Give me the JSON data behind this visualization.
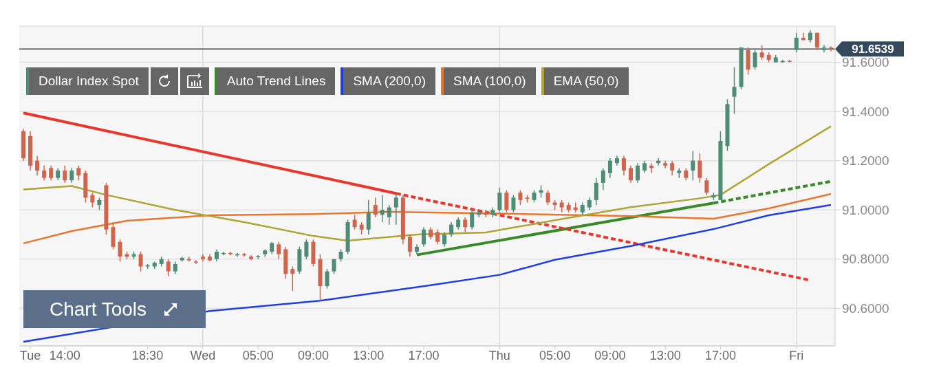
{
  "chart_data": {
    "type": "candlestick",
    "title": "Dollar Index Spot",
    "categories": [
      null,
      "Tue",
      null,
      null,
      null,
      null,
      "14:00",
      null,
      null,
      null,
      null,
      null,
      null,
      null,
      null,
      null,
      null,
      null,
      "18:30",
      null,
      null,
      null,
      null,
      null,
      null,
      null,
      "Wed",
      null,
      null,
      null,
      null,
      null,
      null,
      null,
      "05:00",
      null,
      null,
      null,
      null,
      null,
      null,
      null,
      "09:00",
      null,
      null,
      null,
      null,
      null,
      null,
      null,
      "13:00",
      null,
      null,
      null,
      null,
      null,
      null,
      null,
      "17:00",
      null,
      null,
      null,
      null,
      null,
      null,
      null,
      null,
      null,
      null,
      "Thu",
      null,
      null,
      null,
      null,
      null,
      null,
      null,
      "05:00",
      null,
      null,
      null,
      null,
      null,
      null,
      null,
      "09:00",
      null,
      null,
      null,
      null,
      null,
      null,
      null,
      "13:00",
      null,
      null,
      null,
      null,
      null,
      null,
      null,
      "17:00",
      null,
      null,
      null,
      null,
      null,
      null,
      null,
      null,
      null,
      null,
      "Fri",
      null,
      null,
      null,
      null,
      null
    ],
    "colors": [
      "#d0654e",
      "#d0654e",
      "#d0654e",
      "#d0654e",
      "#d0654e",
      "#4e8c76",
      "#d0654e",
      "#4e8c76",
      "#d0654e",
      "#d0654e",
      "#d0654e",
      "#4e8c76",
      "#d0654e",
      "#d0654e",
      "#d0654e",
      "#d0654e",
      "#4e8c76",
      "#d0654e",
      "#4e8c76",
      "#4e8c76",
      "#4e8c76",
      "#d0654e",
      "#4e8c76",
      "#4e8c76",
      "#d0654e",
      "#d0654e",
      "#d0654e",
      "#d0654e",
      "#4e8c76",
      "#4e8c76",
      "#d0654e",
      "#4e8c76",
      "#d0654e",
      "#d0654e",
      "#4e8c76",
      "#4e8c76",
      "#4e8c76",
      "#d0654e",
      "#d0654e",
      "#d0654e",
      "#4e8c76",
      "#4e8c76",
      "#d0654e",
      "#d0654e",
      "#4e8c76",
      "#4e8c76",
      "#4e8c76",
      "#4e8c76",
      "#d0654e",
      "#d0654e",
      "#4e8c76",
      "#d0654e",
      "#4e8c76",
      "#4e8c76",
      "#4e8c76",
      "#d0654e",
      "#d0654e",
      "#4e8c76",
      "#4e8c76",
      "#d0654e",
      "#d0654e",
      "#4e8c76",
      "#4e8c76",
      "#4e8c76",
      "#d0654e",
      "#4e8c76",
      "#4e8c76",
      "#d0654e",
      "#4e8c76",
      "#4e8c76",
      "#d0654e",
      "#4e8c76",
      "#d0654e",
      "#d0654e",
      "#4e8c76",
      "#4e8c76",
      "#d0654e",
      "#d0654e",
      "#d0654e",
      "#d0654e",
      "#d0654e",
      "#4e8c76",
      "#4e8c76",
      "#4e8c76",
      "#4e8c76",
      "#4e8c76",
      "#4e8c76",
      "#d0654e",
      "#d0654e",
      "#4e8c76",
      "#4e8c76",
      "#d0654e",
      "#4e8c76",
      "#d0654e",
      "#d0654e",
      "#4e8c76",
      "#d0654e",
      "#4e8c76",
      "#d0654e",
      "#d0654e",
      "#4e8c76",
      "#4e8c76",
      "#4e8c76",
      "#4e8c76",
      "#4e8c76",
      "#d0654e",
      "#4e8c76",
      "#d0654e",
      "#d0654e",
      "#4e8c76",
      "#4e8c76",
      "#d0654e",
      "#4e8c76",
      "#d0654e",
      "#4e8c76",
      "#d0654e",
      "#4e8c76",
      "#d0654e"
    ],
    "ohlc": [
      [
        91.32,
        91.33,
        91.2,
        91.21
      ],
      [
        91.3,
        91.32,
        91.16,
        91.18
      ],
      [
        91.2,
        91.22,
        91.14,
        91.16
      ],
      [
        91.16,
        91.18,
        91.12,
        91.13
      ],
      [
        91.17,
        91.18,
        91.12,
        91.13
      ],
      [
        91.13,
        91.17,
        91.12,
        91.16
      ],
      [
        91.16,
        91.18,
        91.11,
        91.12
      ],
      [
        91.12,
        91.17,
        91.11,
        91.16
      ],
      [
        91.17,
        91.18,
        91.12,
        91.14
      ],
      [
        91.15,
        91.16,
        91.03,
        91.05
      ],
      [
        91.06,
        91.07,
        91.01,
        91.03
      ],
      [
        91.02,
        91.05,
        91.0,
        91.04
      ],
      [
        91.1,
        91.11,
        90.9,
        90.92
      ],
      [
        90.93,
        90.95,
        90.84,
        90.85
      ],
      [
        90.87,
        90.88,
        90.79,
        90.81
      ],
      [
        90.82,
        90.83,
        90.8,
        90.81
      ],
      [
        90.81,
        90.83,
        90.8,
        90.82
      ],
      [
        90.82,
        90.83,
        90.75,
        90.77
      ],
      [
        90.77,
        90.78,
        90.76,
        90.775
      ],
      [
        90.77,
        90.79,
        90.76,
        90.785
      ],
      [
        90.78,
        90.81,
        90.77,
        90.8
      ],
      [
        90.79,
        90.8,
        90.73,
        90.75
      ],
      [
        90.75,
        90.79,
        90.74,
        90.78
      ],
      [
        90.795,
        90.81,
        90.79,
        90.805
      ],
      [
        90.8,
        90.81,
        90.79,
        90.795
      ],
      [
        90.79,
        90.795,
        90.78,
        90.788
      ],
      [
        90.81,
        90.82,
        90.79,
        90.8
      ],
      [
        90.81,
        90.82,
        90.79,
        90.795
      ],
      [
        90.8,
        90.84,
        90.79,
        90.83
      ],
      [
        90.82,
        90.83,
        90.815,
        90.825
      ],
      [
        90.825,
        90.83,
        90.815,
        90.82
      ],
      [
        90.815,
        90.825,
        90.81,
        90.82
      ],
      [
        90.82,
        90.825,
        90.81,
        90.815
      ],
      [
        90.81,
        90.815,
        90.795,
        90.8
      ],
      [
        90.81,
        90.815,
        90.8,
        90.812
      ],
      [
        90.82,
        90.84,
        90.81,
        90.835
      ],
      [
        90.83,
        90.87,
        90.82,
        90.865
      ],
      [
        90.86,
        90.87,
        90.8,
        90.82
      ],
      [
        90.84,
        90.85,
        90.72,
        90.74
      ],
      [
        90.76,
        90.77,
        90.67,
        90.74
      ],
      [
        90.75,
        90.85,
        90.74,
        90.84
      ],
      [
        90.81,
        90.88,
        90.8,
        90.87
      ],
      [
        90.87,
        90.88,
        90.77,
        90.78
      ],
      [
        90.8,
        90.82,
        90.63,
        90.69
      ],
      [
        90.69,
        90.76,
        90.68,
        90.75
      ],
      [
        90.75,
        90.8,
        90.74,
        90.8
      ],
      [
        90.8,
        90.84,
        90.79,
        90.83
      ],
      [
        90.83,
        90.96,
        90.82,
        90.95
      ],
      [
        90.96,
        90.98,
        90.92,
        90.93
      ],
      [
        90.94,
        90.95,
        90.9,
        90.92
      ],
      [
        90.92,
        91.04,
        90.9,
        90.99
      ],
      [
        91.02,
        91.05,
        90.97,
        90.98
      ],
      [
        90.98,
        91.06,
        90.95,
        91.0
      ],
      [
        90.97,
        91.02,
        90.94,
        91.01
      ],
      [
        91.01,
        91.07,
        90.94,
        91.05
      ],
      [
        91.05,
        91.06,
        90.86,
        90.88
      ],
      [
        90.89,
        90.9,
        90.81,
        90.83
      ],
      [
        90.83,
        90.86,
        90.82,
        90.85
      ],
      [
        90.86,
        90.93,
        90.85,
        90.92
      ],
      [
        90.92,
        90.93,
        90.88,
        90.89
      ],
      [
        90.91,
        90.92,
        90.86,
        90.87
      ],
      [
        90.86,
        90.91,
        90.85,
        90.9
      ],
      [
        90.9,
        90.95,
        90.89,
        90.94
      ],
      [
        90.93,
        90.97,
        90.92,
        90.96
      ],
      [
        90.96,
        90.97,
        90.91,
        90.93
      ],
      [
        90.93,
        91.0,
        90.92,
        90.99
      ],
      [
        90.98,
        91.0,
        90.97,
        90.99
      ],
      [
        90.99,
        91.0,
        90.97,
        90.98
      ],
      [
        90.98,
        91.01,
        90.97,
        91.0
      ],
      [
        91.0,
        91.09,
        90.99,
        91.07
      ],
      [
        91.07,
        91.08,
        90.99,
        91.0
      ],
      [
        91.0,
        91.06,
        90.99,
        91.05
      ],
      [
        91.07,
        91.08,
        91.02,
        91.04
      ],
      [
        91.05,
        91.06,
        91.03,
        91.045
      ],
      [
        91.04,
        91.08,
        91.03,
        91.07
      ],
      [
        91.07,
        91.1,
        91.05,
        91.08
      ],
      [
        91.07,
        91.08,
        91.02,
        91.03
      ],
      [
        91.03,
        91.04,
        91.0,
        91.02
      ],
      [
        91.03,
        91.04,
        90.99,
        91.01
      ],
      [
        91.02,
        91.03,
        90.99,
        91.0
      ],
      [
        91.01,
        91.03,
        90.99,
        91.0
      ],
      [
        90.99,
        91.03,
        90.98,
        91.02
      ],
      [
        91.01,
        91.05,
        91.0,
        91.04
      ],
      [
        91.04,
        91.13,
        91.02,
        91.11
      ],
      [
        91.11,
        91.17,
        91.08,
        91.16
      ],
      [
        91.15,
        91.21,
        91.13,
        91.2
      ],
      [
        91.19,
        91.22,
        91.18,
        91.21
      ],
      [
        91.21,
        91.22,
        91.14,
        91.16
      ],
      [
        91.17,
        91.18,
        91.11,
        91.12
      ],
      [
        91.12,
        91.19,
        91.11,
        91.18
      ],
      [
        91.16,
        91.2,
        91.15,
        91.19
      ],
      [
        91.18,
        91.19,
        91.15,
        91.17
      ],
      [
        91.19,
        91.21,
        91.18,
        91.2
      ],
      [
        91.19,
        91.2,
        91.17,
        91.18
      ],
      [
        91.19,
        91.2,
        91.14,
        91.16
      ],
      [
        91.15,
        91.17,
        91.13,
        91.16
      ],
      [
        91.16,
        91.17,
        91.12,
        91.13
      ],
      [
        91.16,
        91.24,
        91.12,
        91.2
      ],
      [
        91.2,
        91.23,
        91.11,
        91.13
      ],
      [
        91.12,
        91.13,
        91.06,
        91.07
      ],
      [
        91.05,
        91.07,
        91.04,
        91.06
      ],
      [
        91.04,
        91.32,
        91.04,
        91.28
      ],
      [
        91.26,
        91.45,
        91.24,
        91.43
      ],
      [
        91.46,
        91.58,
        91.39,
        91.5
      ],
      [
        91.5,
        91.66,
        91.49,
        91.66
      ],
      [
        91.65,
        91.66,
        91.55,
        91.57
      ],
      [
        91.58,
        91.65,
        91.57,
        91.64
      ],
      [
        91.64,
        91.67,
        91.61,
        91.62
      ],
      [
        91.63,
        91.64,
        91.6,
        91.61
      ],
      [
        91.6,
        91.63,
        91.6,
        91.62
      ],
      [
        91.6,
        91.61,
        91.6,
        91.605
      ],
      [
        91.606,
        91.61,
        91.6,
        91.603
      ],
      [
        91.65,
        91.72,
        91.64,
        91.7
      ],
      [
        91.7,
        91.72,
        91.69,
        91.69
      ],
      [
        91.69,
        91.73,
        91.68,
        91.72
      ],
      [
        91.72,
        91.72,
        91.65,
        91.66
      ],
      [
        91.65,
        91.67,
        91.64,
        91.66
      ],
      [
        91.66,
        91.665,
        91.645,
        91.654
      ]
    ],
    "series": [
      {
        "name": "Auto Trend Lines",
        "type": "line",
        "color": "#3a8a2a",
        "line_style": "solid",
        "values": [
          null,
          null,
          null,
          null,
          null,
          null,
          null,
          null,
          null,
          null,
          null,
          null,
          null,
          null,
          null,
          null,
          null,
          null,
          null,
          null,
          null,
          null,
          null,
          null,
          null,
          null,
          null,
          null,
          null,
          null,
          null,
          null,
          null,
          null,
          null,
          null,
          null,
          null,
          null,
          null,
          null,
          null,
          null,
          null,
          null,
          null,
          null,
          null,
          null,
          null,
          null,
          null,
          null,
          null,
          null,
          null,
          null,
          90.817,
          null,
          null,
          null,
          null,
          null,
          null,
          null,
          null,
          null,
          null,
          null,
          null,
          null,
          null,
          null,
          null,
          null,
          null,
          null,
          null,
          null,
          null,
          null,
          null,
          null,
          null,
          null,
          null,
          null,
          null,
          null,
          null,
          null,
          null,
          null,
          null,
          null,
          null,
          null,
          null,
          null,
          null,
          91.028,
          null,
          null,
          null,
          null,
          null,
          null,
          null,
          null,
          null,
          null,
          null,
          null,
          null,
          null,
          null,
          null,
          null
        ]
      },
      {
        "type": "line",
        "color": "#3a8a2a",
        "line_style": "dashed",
        "values": [
          null,
          null,
          null,
          null,
          null,
          null,
          null,
          null,
          null,
          null,
          null,
          null,
          null,
          null,
          null,
          null,
          null,
          null,
          null,
          null,
          null,
          null,
          null,
          null,
          null,
          null,
          null,
          null,
          null,
          null,
          null,
          null,
          null,
          null,
          null,
          null,
          null,
          null,
          null,
          null,
          null,
          null,
          null,
          null,
          null,
          null,
          null,
          null,
          null,
          null,
          null,
          null,
          null,
          null,
          null,
          null,
          null,
          null,
          null,
          null,
          null,
          null,
          null,
          null,
          null,
          null,
          null,
          null,
          null,
          null,
          null,
          null,
          null,
          null,
          null,
          null,
          null,
          null,
          null,
          null,
          null,
          null,
          null,
          null,
          null,
          null,
          null,
          null,
          null,
          null,
          null,
          null,
          null,
          null,
          null,
          null,
          null,
          null,
          null,
          null,
          91.028,
          null,
          null,
          null,
          null,
          null,
          null,
          null,
          null,
          null,
          null,
          null,
          null,
          null,
          null,
          null,
          null,
          91.116
        ]
      },
      {
        "type": "line",
        "color": "#e8382e",
        "line_style": "solid",
        "values": [
          91.394,
          null,
          null,
          null,
          null,
          null,
          null,
          null,
          null,
          null,
          null,
          null,
          null,
          null,
          null,
          null,
          null,
          null,
          null,
          null,
          null,
          null,
          null,
          null,
          null,
          null,
          null,
          null,
          null,
          null,
          null,
          null,
          null,
          null,
          null,
          null,
          null,
          null,
          null,
          null,
          null,
          null,
          null,
          null,
          null,
          null,
          null,
          null,
          null,
          null,
          null,
          null,
          null,
          null,
          91.067,
          null,
          null,
          null,
          null,
          null,
          null,
          null,
          null,
          null,
          null,
          null,
          null,
          null,
          null,
          null,
          null,
          null,
          null,
          null,
          null,
          null,
          null,
          null,
          null,
          null,
          null,
          null,
          null,
          null,
          null,
          null,
          null,
          null,
          null,
          null,
          null,
          null,
          null,
          null,
          null,
          null,
          null,
          null,
          null,
          null,
          null,
          null,
          null,
          null,
          null,
          null,
          null,
          null,
          null,
          null,
          null,
          null,
          null,
          null,
          null,
          null,
          null,
          null
        ]
      },
      {
        "type": "line",
        "color": "#e8382e",
        "line_style": "dashed",
        "values": [
          null,
          null,
          null,
          null,
          null,
          null,
          null,
          null,
          null,
          null,
          null,
          null,
          null,
          null,
          null,
          null,
          null,
          null,
          null,
          null,
          null,
          null,
          null,
          null,
          null,
          null,
          null,
          null,
          null,
          null,
          null,
          null,
          null,
          null,
          null,
          null,
          null,
          null,
          null,
          null,
          null,
          null,
          null,
          null,
          null,
          null,
          null,
          null,
          null,
          null,
          null,
          null,
          null,
          null,
          91.067,
          null,
          null,
          null,
          null,
          null,
          null,
          null,
          null,
          null,
          null,
          null,
          null,
          null,
          null,
          null,
          null,
          null,
          null,
          null,
          null,
          null,
          null,
          null,
          null,
          null,
          null,
          null,
          null,
          null,
          null,
          null,
          null,
          null,
          null,
          null,
          null,
          null,
          null,
          null,
          null,
          null,
          null,
          null,
          null,
          null,
          null,
          null,
          null,
          null,
          null,
          null,
          null,
          null,
          null,
          null,
          null,
          null,
          null,
          null,
          90.714,
          null,
          null,
          null
        ]
      },
      {
        "name": "SMA (200,0)",
        "type": "line",
        "color": "#1f3fe0",
        "line_style": "solid",
        "values": [
          90.464,
          null,
          null,
          null,
          null,
          null,
          null,
          null,
          null,
          null,
          null,
          null,
          null,
          null,
          null,
          null,
          null,
          null,
          null,
          null,
          null,
          null,
          null,
          null,
          null,
          null,
          null,
          90.589,
          null,
          null,
          null,
          null,
          null,
          null,
          null,
          null,
          null,
          null,
          null,
          null,
          null,
          null,
          null,
          90.631,
          null,
          null,
          null,
          null,
          null,
          null,
          null,
          null,
          null,
          null,
          null,
          null,
          null,
          null,
          null,
          90.694,
          null,
          null,
          null,
          null,
          null,
          null,
          null,
          null,
          null,
          90.736,
          null,
          null,
          null,
          null,
          null,
          null,
          null,
          90.797,
          null,
          null,
          null,
          null,
          null,
          null,
          null,
          null,
          null,
          null,
          90.853,
          null,
          null,
          null,
          null,
          null,
          null,
          null,
          null,
          null,
          null,
          null,
          90.922,
          null,
          null,
          null,
          null,
          null,
          null,
          null,
          90.978,
          null,
          null,
          null,
          null,
          null,
          null,
          null,
          null,
          91.02
        ]
      },
      {
        "name": "SMA (100,0)",
        "type": "line",
        "color": "#e8762c",
        "line_style": "solid",
        "values": [
          90.864,
          null,
          null,
          null,
          null,
          null,
          null,
          90.914,
          null,
          null,
          null,
          null,
          null,
          null,
          null,
          90.956,
          null,
          null,
          null,
          null,
          null,
          null,
          null,
          null,
          null,
          null,
          null,
          90.978,
          null,
          null,
          null,
          null,
          null,
          null,
          null,
          null,
          null,
          null,
          null,
          null,
          null,
          null,
          90.983,
          null,
          null,
          null,
          null,
          null,
          null,
          null,
          null,
          null,
          null,
          90.992,
          null,
          null,
          null,
          null,
          null,
          null,
          null,
          null,
          null,
          null,
          null,
          null,
          null,
          90.986,
          null,
          null,
          null,
          null,
          null,
          null,
          null,
          null,
          null,
          null,
          null,
          null,
          null,
          null,
          null,
          null,
          null,
          null,
          null,
          null,
          90.975,
          null,
          null,
          null,
          null,
          null,
          null,
          null,
          null,
          null,
          null,
          null,
          90.964,
          null,
          null,
          null,
          null,
          null,
          null,
          null,
          91.006,
          null,
          null,
          null,
          null,
          null,
          null,
          null,
          null,
          91.065
        ]
      },
      {
        "name": "EMA (50,0)",
        "type": "line",
        "color": "#b0a434",
        "line_style": "solid",
        "values": [
          91.083,
          null,
          null,
          null,
          null,
          null,
          null,
          91.097,
          null,
          null,
          null,
          null,
          91.061,
          null,
          null,
          null,
          null,
          null,
          null,
          null,
          null,
          null,
          91.0,
          null,
          null,
          null,
          null,
          null,
          null,
          null,
          null,
          null,
          90.95,
          null,
          null,
          null,
          null,
          null,
          null,
          null,
          null,
          null,
          90.894,
          null,
          null,
          null,
          null,
          90.875,
          null,
          null,
          null,
          null,
          null,
          null,
          null,
          null,
          null,
          90.9,
          null,
          null,
          null,
          null,
          null,
          null,
          null,
          null,
          null,
          90.908,
          null,
          null,
          null,
          null,
          null,
          null,
          null,
          null,
          null,
          90.958,
          null,
          null,
          null,
          null,
          null,
          null,
          null,
          null,
          null,
          null,
          91.011,
          null,
          null,
          null,
          null,
          null,
          null,
          null,
          null,
          null,
          91.047,
          null,
          null,
          91.061,
          null,
          null,
          null,
          null,
          null,
          null,
          91.186,
          null,
          null,
          null,
          null,
          null,
          null,
          null,
          null,
          91.34
        ]
      }
    ],
    "ylim": [
      90.447,
      91.747
    ],
    "yticks": [
      {
        "value": 90.6,
        "label": "90.6000"
      },
      {
        "value": 90.8,
        "label": "90.8000"
      },
      {
        "value": 91.0,
        "label": "91.0000"
      },
      {
        "value": 91.2,
        "label": "91.2000"
      },
      {
        "value": 91.4,
        "label": "91.4000"
      },
      {
        "value": 91.6,
        "label": "91.6000"
      }
    ],
    "ref_lines": [
      {
        "axis": "y",
        "value": 91.6539,
        "label": "91.6539",
        "color": "#34495e"
      },
      {
        "axis": "x",
        "value": "Wed",
        "label": null,
        "color": "#dddddd"
      },
      {
        "axis": "x",
        "value": "Thu",
        "label": null,
        "color": "#dddddd"
      },
      {
        "axis": "x",
        "value": "Fri",
        "label": null,
        "color": "#dddddd"
      }
    ],
    "grid": "y",
    "legend": "top left",
    "annotations": [
      "Chart Tools"
    ]
  }
}
